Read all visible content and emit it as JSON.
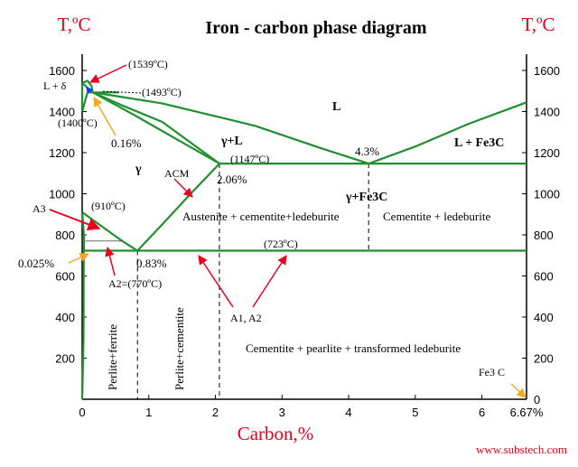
{
  "title": "Iron - carbon phase diagram",
  "ylabel_left": "T,ºC",
  "ylabel_right": "T,ºC",
  "xlabel": "Carbon,%",
  "watermark": "www.substech.com",
  "colors": {
    "phase_line": "#1f8f2f",
    "axis": "#000000",
    "red_text": "#e8001c",
    "orange_arrow": "#f5a623",
    "red_arrow": "#e8001c",
    "blue_dot": "#1b3cff"
  },
  "chart_data": {
    "type": "phase-diagram",
    "xlim": [
      0,
      6.67
    ],
    "ylim": [
      0,
      1650
    ],
    "x_ticks": [
      {
        "value": 0,
        "label": "0"
      },
      {
        "value": 1,
        "label": "1"
      },
      {
        "value": 2,
        "label": "2"
      },
      {
        "value": 3,
        "label": "3"
      },
      {
        "value": 4,
        "label": "4"
      },
      {
        "value": 5,
        "label": "5"
      },
      {
        "value": 6,
        "label": "6"
      },
      {
        "value": 6.67,
        "label": "6.67%"
      }
    ],
    "y_ticks_left": [
      {
        "value": 200,
        "label": "200"
      },
      {
        "value": 400,
        "label": "400"
      },
      {
        "value": 600,
        "label": "600"
      },
      {
        "value": 800,
        "label": "800"
      },
      {
        "value": 1000,
        "label": "1000"
      },
      {
        "value": 1200,
        "label": "1200"
      },
      {
        "value": 1400,
        "label": "1400"
      },
      {
        "value": 1600,
        "label": "1600"
      }
    ],
    "y_ticks_right": [
      {
        "value": 0,
        "label": "0"
      },
      {
        "value": 200,
        "label": "200"
      },
      {
        "value": 400,
        "label": "400"
      },
      {
        "value": 600,
        "label": "600"
      },
      {
        "value": 800,
        "label": "800"
      },
      {
        "value": 1000,
        "label": "1000"
      },
      {
        "value": 1200,
        "label": "1200"
      },
      {
        "value": 1400,
        "label": "1400"
      },
      {
        "value": 1600,
        "label": "1600"
      }
    ],
    "phase_lines": [
      {
        "name": "liquidus-left",
        "points": [
          [
            0,
            1539
          ],
          [
            0.16,
            1493
          ],
          [
            0.6,
            1430
          ],
          [
            1.2,
            1350
          ],
          [
            2.06,
            1147
          ]
        ]
      },
      {
        "name": "liquidus-right",
        "points": [
          [
            0.16,
            1493
          ],
          [
            1.2,
            1440
          ],
          [
            2.6,
            1330
          ],
          [
            3.6,
            1220
          ],
          [
            4.3,
            1147
          ],
          [
            5.0,
            1230
          ],
          [
            5.8,
            1340
          ],
          [
            6.67,
            1445
          ]
        ]
      },
      {
        "name": "delta-top",
        "points": [
          [
            0,
            1539
          ],
          [
            0.08,
            1550
          ],
          [
            0.14,
            1525
          ],
          [
            0.16,
            1493
          ]
        ]
      },
      {
        "name": "delta-left",
        "points": [
          [
            0,
            1539
          ],
          [
            0,
            1400
          ]
        ]
      },
      {
        "name": "delta-lower",
        "points": [
          [
            0,
            1400
          ],
          [
            0.08,
            1493
          ]
        ]
      },
      {
        "name": "peritectic",
        "points": [
          [
            0.08,
            1493
          ],
          [
            0.55,
            1493
          ]
        ]
      },
      {
        "name": "solidus",
        "points": [
          [
            0.16,
            1493
          ],
          [
            0.8,
            1380
          ],
          [
            1.5,
            1250
          ],
          [
            2.06,
            1147
          ]
        ]
      },
      {
        "name": "eutectic",
        "points": [
          [
            2.06,
            1147
          ],
          [
            6.67,
            1147
          ]
        ]
      },
      {
        "name": "acm",
        "points": [
          [
            0.83,
            723
          ],
          [
            1.2,
            850
          ],
          [
            1.6,
            990
          ],
          [
            2.06,
            1147
          ]
        ]
      },
      {
        "name": "a3",
        "points": [
          [
            0,
            910
          ],
          [
            0.3,
            840
          ],
          [
            0.6,
            770
          ],
          [
            0.83,
            723
          ]
        ]
      },
      {
        "name": "eutectoid",
        "points": [
          [
            0.025,
            723
          ],
          [
            6.67,
            723
          ]
        ]
      },
      {
        "name": "ferrite-solvus",
        "points": [
          [
            0.025,
            723
          ],
          [
            0.02,
            300
          ],
          [
            0.0,
            0
          ]
        ]
      },
      {
        "name": "ferrite-left",
        "points": [
          [
            0,
            910
          ],
          [
            0.03,
            780
          ],
          [
            0.025,
            723
          ]
        ]
      },
      {
        "name": "a2-line",
        "points": [
          [
            0.05,
            770
          ],
          [
            0.6,
            770
          ]
        ]
      }
    ],
    "dashed_lines": [
      {
        "name": "x-0.83",
        "x": 0.83,
        "from": 723,
        "to": 0
      },
      {
        "name": "x-2.06",
        "x": 2.06,
        "from": 1147,
        "to": 0
      },
      {
        "name": "x-4.3",
        "x": 4.3,
        "from": 1147,
        "to": 723
      }
    ],
    "key_points": [
      {
        "label": "(1539ºC)",
        "x": 0,
        "y": 1539
      },
      {
        "label": "(1493ºC)",
        "x": 0.16,
        "y": 1493
      },
      {
        "label": "(1400ºC)",
        "x": 0,
        "y": 1400
      },
      {
        "label": "0.16%",
        "x": 0.16,
        "y": 1493
      },
      {
        "label": "(1147ºC)",
        "x": 2.06,
        "y": 1147
      },
      {
        "label": "2.06%",
        "x": 2.06,
        "y": 1147
      },
      {
        "label": "4.3%",
        "x": 4.3,
        "y": 1147
      },
      {
        "label": "(910ºC)",
        "x": 0,
        "y": 910
      },
      {
        "label": "(723ºC)",
        "x": 3.0,
        "y": 723
      },
      {
        "label": "0.83%",
        "x": 0.83,
        "y": 723
      },
      {
        "label": "0.025%",
        "x": 0.025,
        "y": 723
      },
      {
        "label": "A2=(770ºC)",
        "x": 0.3,
        "y": 770
      }
    ]
  },
  "labels": {
    "t1539": "(1539ºC)",
    "t1493": "(1493ºC)",
    "t1400": "(1400ºC)",
    "c016": "0.16%",
    "l_delta": "L + δ",
    "L": "L",
    "gamma_L": "γ+L",
    "t1147": "(1147ºC)",
    "c43": "4.3%",
    "L_fe3c": "L + Fe3C",
    "gamma": "γ",
    "acm": "ACM",
    "c206": "2.06%",
    "gamma_fe3c": "γ+Fe3C",
    "a3": "A3",
    "t910": "(910ºC)",
    "austenite_region": "Austenite + cementite+ledeburite",
    "cementite_ledeburite": "Cementite + ledeburite",
    "t723": "(723ºC)",
    "c0025": "0.025%",
    "c083": "0.83%",
    "a2": "A2=(770ºC)",
    "a1a2": "A1, A2",
    "perlite_ferrite": "Perlite+ferrite",
    "perlite_cementite": "Perlite+cementite",
    "low_region": "Cementite +  pearlite + transformed  ledeburite",
    "fe3c": "Fe3 C"
  }
}
